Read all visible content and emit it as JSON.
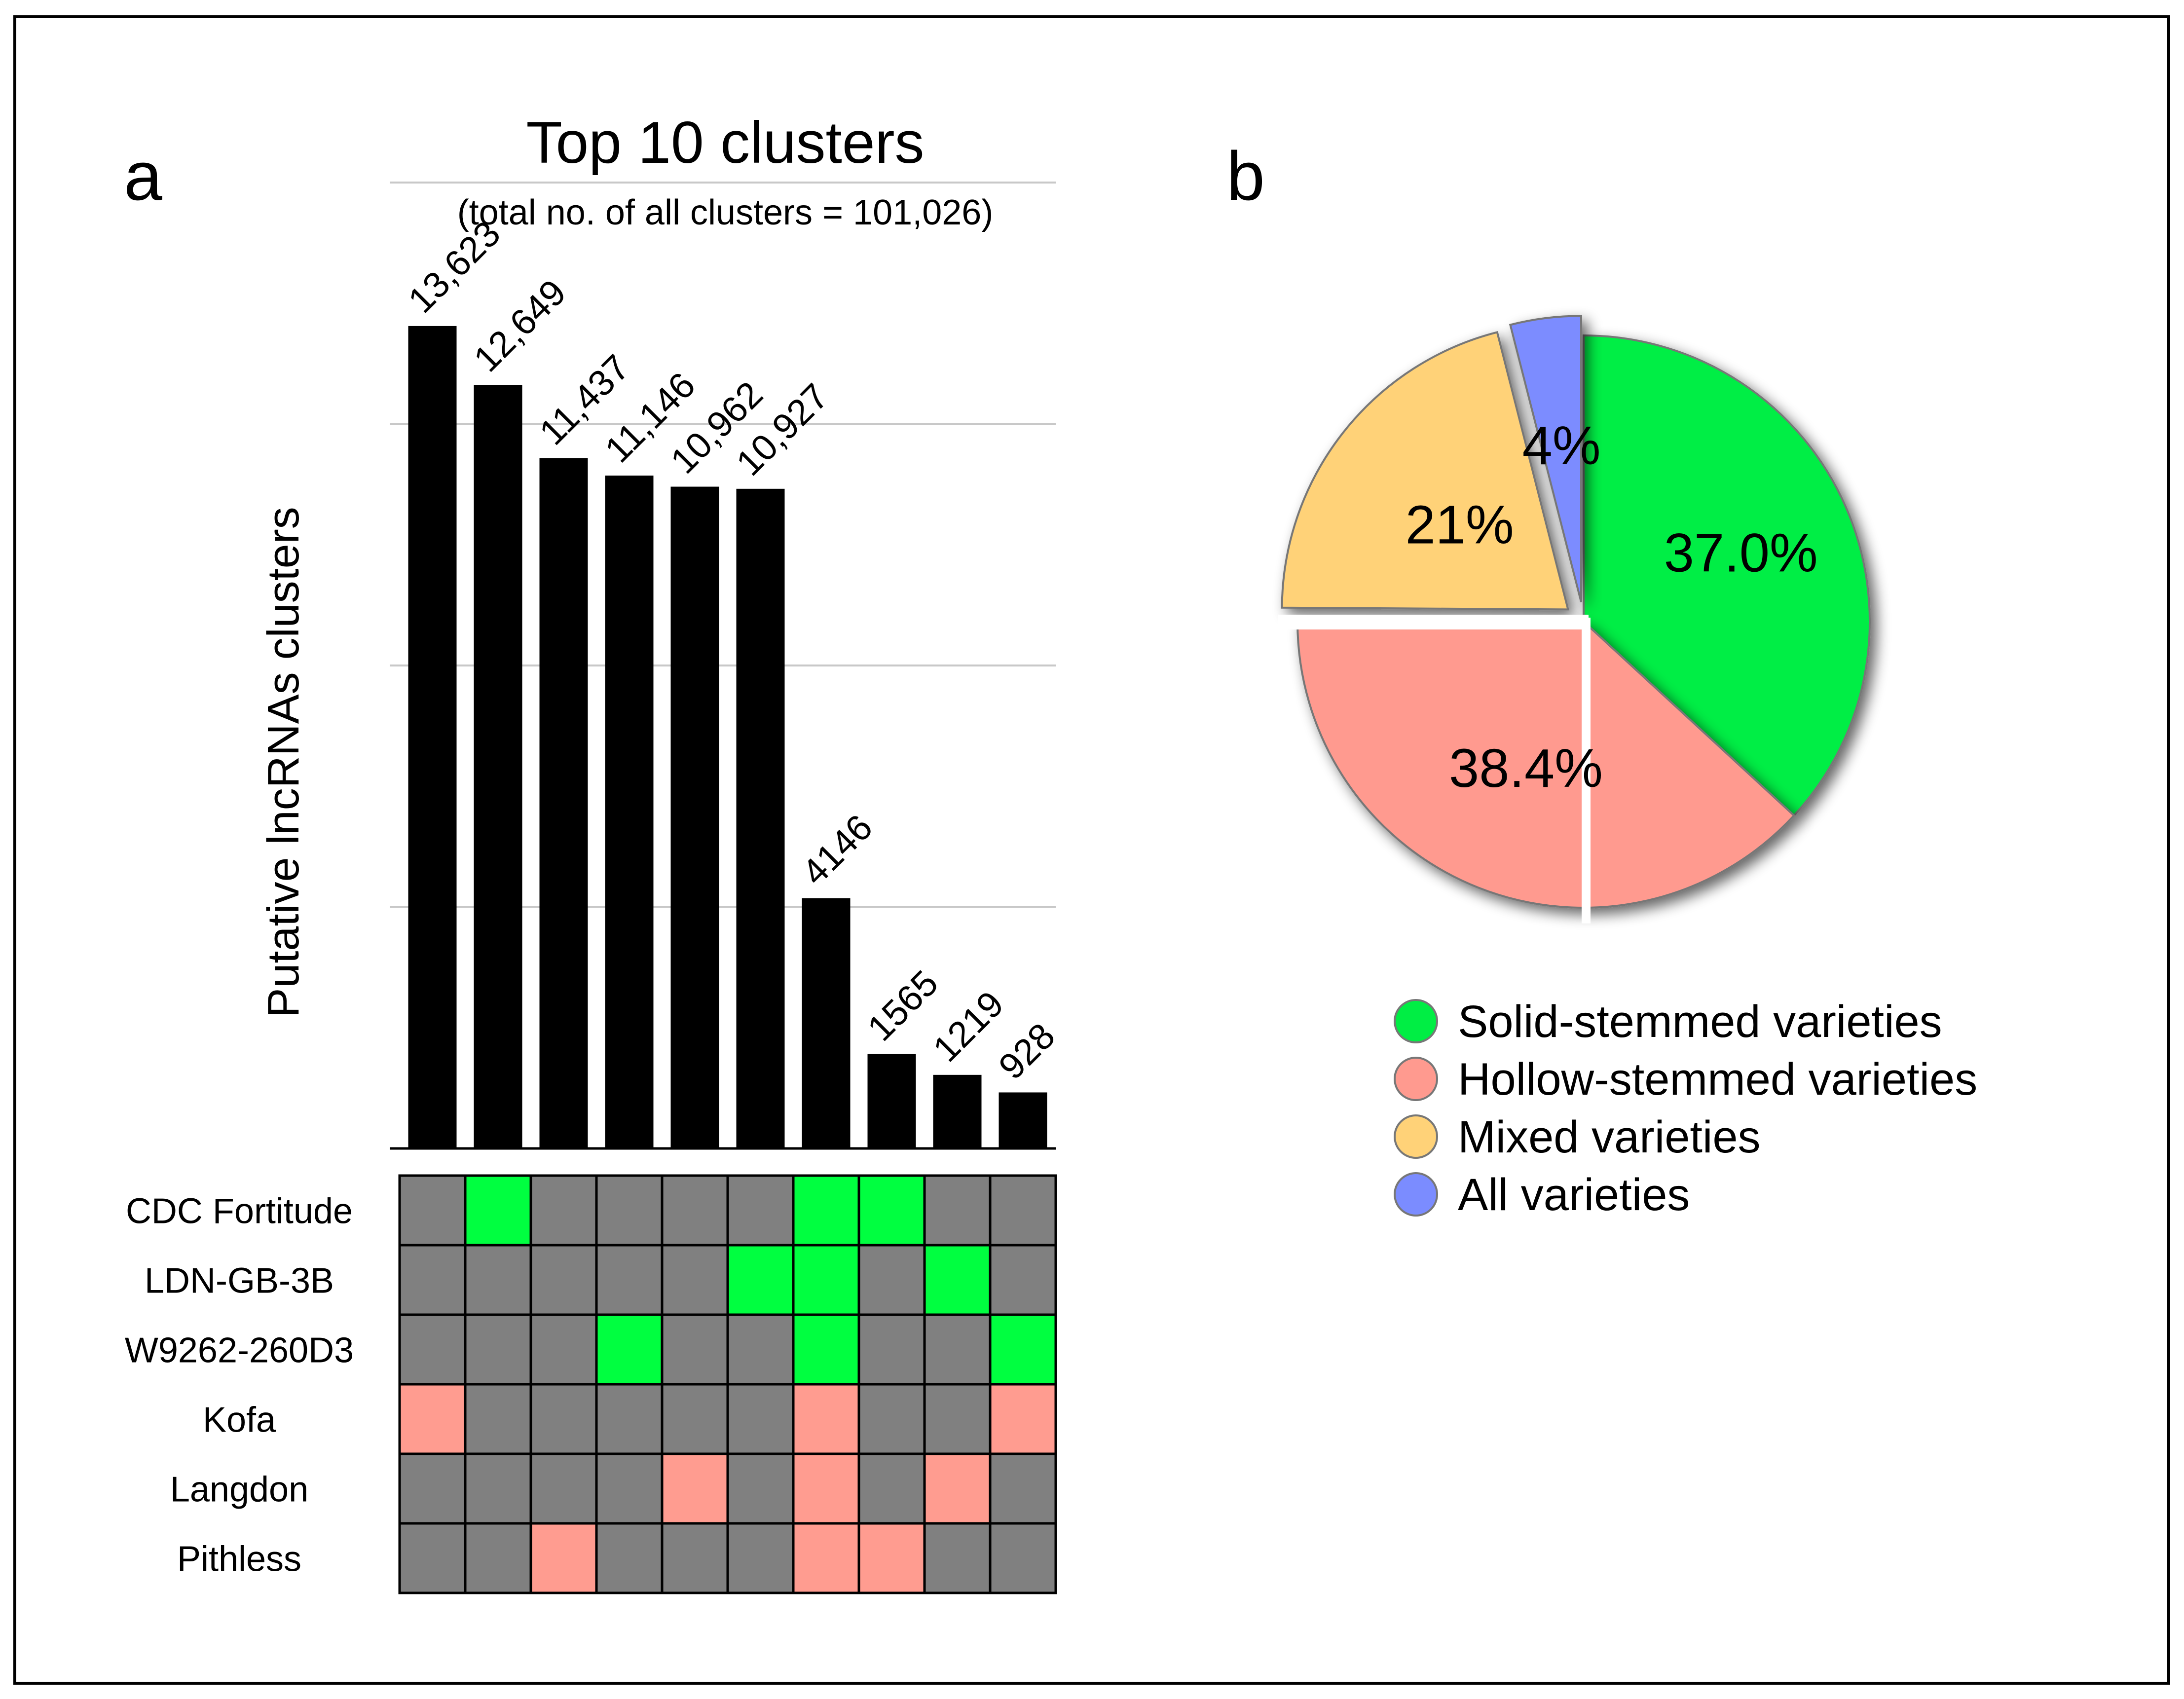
{
  "panel_labels": {
    "a": "a",
    "b": "b"
  },
  "colors": {
    "bar": "#000000",
    "gridline": "#c8c8c8",
    "matrix_off": "#808080",
    "matrix_solid": "#00ff40",
    "matrix_hollow": "#ff9c90",
    "pie_solid": "#00ee44",
    "pie_hollow": "#ff9a8f",
    "pie_mixed": "#ffd278",
    "pie_all": "#7b8cff"
  },
  "chart_data": [
    {
      "type": "bar",
      "title": "Top 10 clusters",
      "subtitle": "(total no. of all clusters = 101,026)",
      "xlabel": "",
      "ylabel": "Putative lncRNAs clusters",
      "ylim": [
        0,
        16000
      ],
      "grid": true,
      "values": [
        13623,
        12649,
        11437,
        11146,
        10962,
        10927,
        4146,
        1565,
        1219,
        928
      ],
      "data_labels": [
        "13,623",
        "12,649",
        "11,437",
        "11,146",
        "10,962",
        "10,927",
        "4146",
        "1565",
        "1219",
        "928"
      ]
    },
    {
      "type": "table",
      "rows": [
        "CDC Fortitude",
        "LDN-GB-3B",
        "W9262-260D3",
        "Kofa",
        "Langdon",
        "Pithless"
      ],
      "row_groups": [
        "solid",
        "solid",
        "solid",
        "hollow",
        "hollow",
        "hollow"
      ],
      "presence": [
        [
          0,
          1,
          0,
          0,
          0,
          0,
          1,
          1,
          0,
          0
        ],
        [
          0,
          0,
          0,
          0,
          0,
          1,
          1,
          0,
          1,
          0
        ],
        [
          0,
          0,
          0,
          1,
          0,
          0,
          1,
          0,
          0,
          1
        ],
        [
          1,
          0,
          0,
          0,
          0,
          0,
          1,
          0,
          0,
          1
        ],
        [
          0,
          0,
          0,
          0,
          1,
          0,
          1,
          0,
          1,
          0
        ],
        [
          0,
          0,
          1,
          0,
          0,
          0,
          1,
          1,
          0,
          0
        ]
      ]
    },
    {
      "type": "pie",
      "slices": [
        {
          "name": "Solid-stemmed varieties",
          "value": 37.0,
          "label": "37.0%",
          "exploded": false
        },
        {
          "name": "Hollow-stemmed varieties",
          "value": 38.4,
          "label": "38.4%",
          "exploded": false
        },
        {
          "name": "Mixed varieties",
          "value": 21,
          "label": "21%",
          "exploded": true
        },
        {
          "name": "All varieties",
          "value": 4,
          "label": "4%",
          "exploded": true
        }
      ],
      "legend_position": "bottom"
    }
  ]
}
